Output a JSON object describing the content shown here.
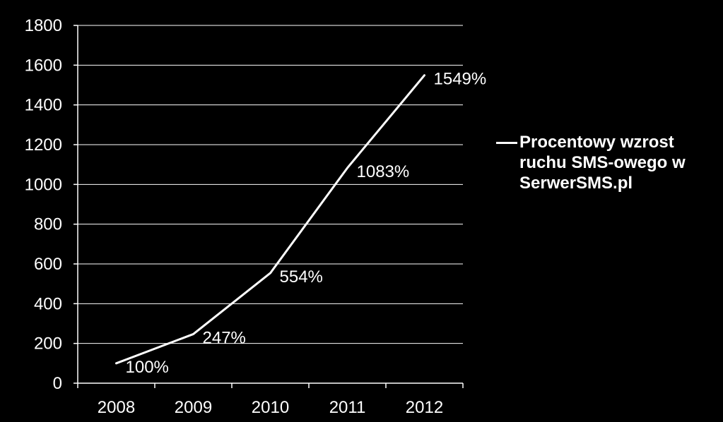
{
  "chart_data": {
    "type": "line",
    "categories": [
      "2008",
      "2009",
      "2010",
      "2011",
      "2012"
    ],
    "series": [
      {
        "name": "Procentowy wzrost ruchu SMS-owego w SerwerSMS.pl",
        "values": [
          100,
          247,
          554,
          1083,
          1549
        ],
        "labels": [
          "100%",
          "247%",
          "554%",
          "1083%",
          "1549%"
        ]
      }
    ],
    "yticks": [
      "0",
      "200",
      "400",
      "600",
      "800",
      "1000",
      "1200",
      "1400",
      "1600",
      "1800"
    ],
    "ylim": [
      0,
      1800
    ],
    "grid": true,
    "legend_position": "right",
    "colors": {
      "background": "#000000",
      "line": "#ffffff",
      "grid": "#ffffff",
      "text": "#ffffff"
    }
  }
}
